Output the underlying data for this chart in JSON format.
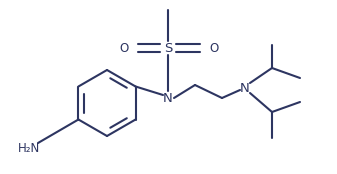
{
  "line_color": "#2d3561",
  "line_width": 1.5,
  "font_size": 8.5,
  "bg_color": "#ffffff",
  "figsize": [
    3.37,
    1.74
  ],
  "dpi": 100,
  "xlim": [
    0,
    337
  ],
  "ylim": [
    0,
    174
  ]
}
